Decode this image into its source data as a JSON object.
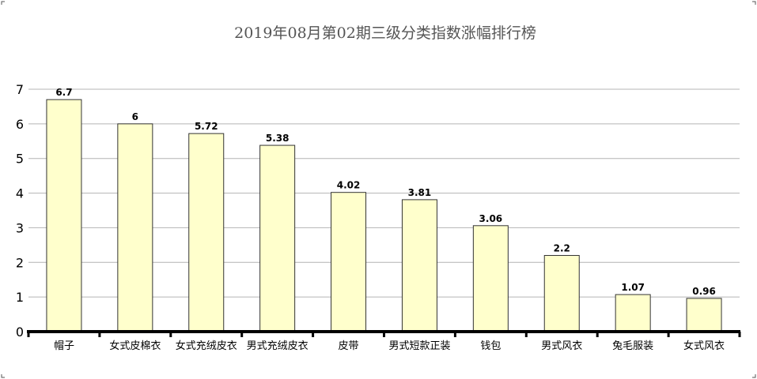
{
  "chart_data": {
    "type": "bar",
    "title": "2019年08月第02期三级分类指数涨幅排行榜",
    "categories": [
      "帽子",
      "女式皮棉衣",
      "女式充绒皮衣",
      "男式充绒皮衣",
      "皮带",
      "男式短款正装",
      "钱包",
      "男式风衣",
      "兔毛服装",
      "女式风衣"
    ],
    "values": [
      6.7,
      6,
      5.72,
      5.38,
      4.02,
      3.81,
      3.06,
      2.2,
      1.07,
      0.96
    ],
    "value_labels": [
      "6.7",
      "6",
      "5.72",
      "5.38",
      "4.02",
      "3.81",
      "3.06",
      "2.2",
      "1.07",
      "0.96"
    ],
    "yticks": [
      "0",
      "1",
      "2",
      "3",
      "4",
      "5",
      "6",
      "7"
    ],
    "ylim": [
      0,
      7
    ],
    "grid": true,
    "xlabel": "",
    "ylabel": "",
    "colors": {
      "bar_fill": "#ffffcc",
      "bar_stroke": "#333333",
      "grid": "#b4b4b4",
      "axis": "#000000",
      "title": "#555555"
    }
  }
}
